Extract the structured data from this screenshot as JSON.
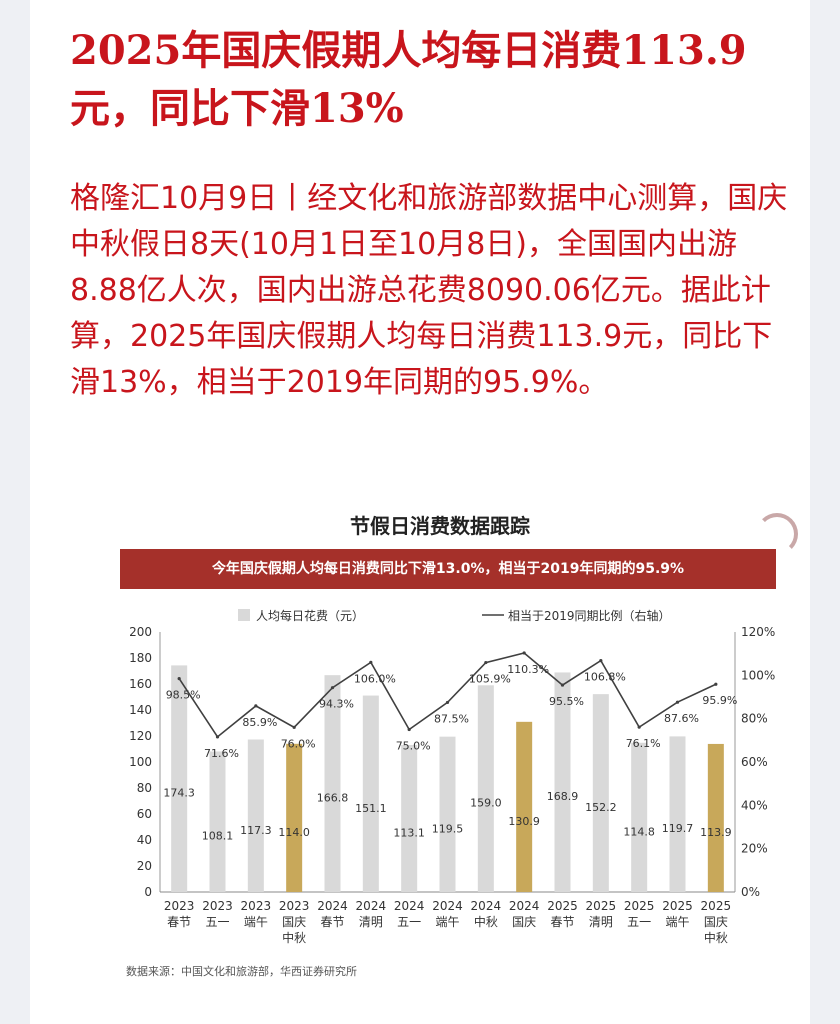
{
  "headline": "2025年国庆假期人均每日消费113.9元，同比下滑13%",
  "body": "格隆汇10月9日丨经文化和旅游部数据中心测算，国庆中秋假日8天(10月1日至10月8日)，全国国内出游8.88亿人次，国内出游总花费8090.06亿元。据此计算，2025年国庆假期人均每日消费113.9元，同比下滑13%，相当于2019年同期的95.9%。",
  "chart_title": "节假日消费数据跟踪",
  "banner": "今年国庆假期人均每日消费同比下滑13.0%，相当于2019年同期的95.9%",
  "source": "数据来源：中国文化和旅游部，华西证券研究所",
  "colors": {
    "headline": "#c8151c",
    "banner": "#a5302a",
    "bar_regular": "#d9d9d9",
    "bar_highlight": "#c8a85a",
    "line": "#404040"
  },
  "chart_data": {
    "type": "bar",
    "title": "节假日消费数据跟踪",
    "categories": [
      [
        "2023",
        "春节"
      ],
      [
        "2023",
        "五一"
      ],
      [
        "2023",
        "端午"
      ],
      [
        "2023",
        "国庆",
        "中秋"
      ],
      [
        "2024",
        "春节"
      ],
      [
        "2024",
        "清明"
      ],
      [
        "2024",
        "五一"
      ],
      [
        "2024",
        "端午"
      ],
      [
        "2024",
        "中秋"
      ],
      [
        "2024",
        "国庆"
      ],
      [
        "2025",
        "春节"
      ],
      [
        "2025",
        "清明"
      ],
      [
        "2025",
        "五一"
      ],
      [
        "2025",
        "端午"
      ],
      [
        "2025",
        "国庆",
        "中秋"
      ]
    ],
    "series": [
      {
        "name": "人均每日花费（元）",
        "type": "bar",
        "values": [
          174.3,
          108.1,
          117.3,
          114.0,
          166.8,
          151.1,
          113.1,
          119.5,
          159.0,
          130.9,
          168.9,
          152.2,
          114.8,
          119.7,
          113.9
        ],
        "labels": [
          "174.3",
          "108.1",
          "117.3",
          "114.0",
          "166.8",
          "151.1",
          "113.1",
          "119.5",
          "159.0",
          "130.9",
          "168.9",
          "152.2",
          "114.8",
          "119.7",
          "113.9"
        ],
        "highlight": [
          false,
          false,
          false,
          true,
          false,
          false,
          false,
          false,
          false,
          true,
          false,
          false,
          false,
          false,
          true
        ]
      },
      {
        "name": "相当于2019同期比例（右轴）",
        "type": "line",
        "axis": "right",
        "values": [
          98.5,
          71.6,
          85.9,
          76.0,
          94.3,
          106.0,
          75.0,
          87.5,
          105.9,
          110.3,
          95.5,
          106.8,
          76.1,
          87.6,
          95.9
        ],
        "labels": [
          "98.5%",
          "71.6%",
          "85.9%",
          "76.0%",
          "94.3%",
          "106.0%",
          "75.0%",
          "87.5%",
          "105.9%",
          "110.3%",
          "95.5%",
          "106.8%",
          "76.1%",
          "87.6%",
          "95.9%"
        ]
      }
    ],
    "ylim": [
      0,
      200
    ],
    "yticks": [
      "0",
      "20",
      "40",
      "60",
      "80",
      "100",
      "120",
      "140",
      "160",
      "180",
      "200"
    ],
    "y2lim": [
      0,
      120
    ],
    "y2ticks": [
      "0%",
      "20%",
      "40%",
      "60%",
      "80%",
      "100%",
      "120%"
    ],
    "grid": false,
    "legend": "top"
  }
}
